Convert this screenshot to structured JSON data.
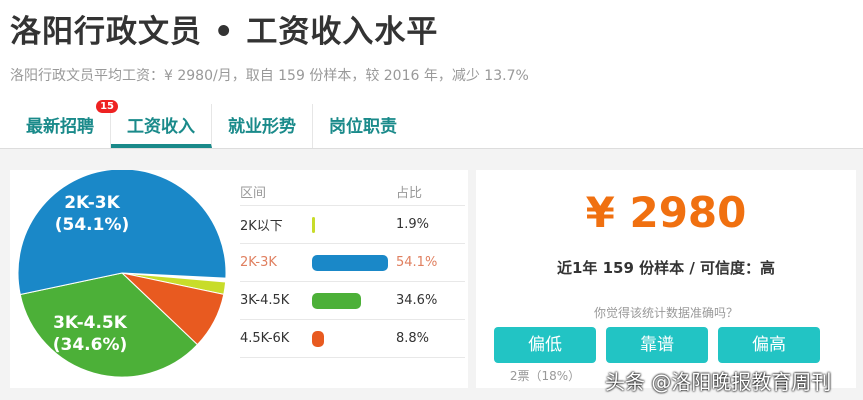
{
  "title": "洛阳行政文员 • 工资收入水平",
  "subtitle": "洛阳行政文员平均工资：¥ 2980/月，取自 159 份样本，较 2016 年，减少 13.7%",
  "tabs": [
    {
      "label": "最新招聘",
      "badge": "15"
    },
    {
      "label": "工资收入",
      "active": true
    },
    {
      "label": "就业形势"
    },
    {
      "label": "岗位职责"
    }
  ],
  "chart_data": {
    "type": "pie",
    "slices": [
      {
        "label": "2K以下",
        "value": 1.9,
        "pct": "1.9%",
        "color": "#c8dc2a"
      },
      {
        "label": "2K-3K",
        "value": 54.1,
        "pct": "54.1%",
        "color": "#1a88c8",
        "pie_label": "2K-3K",
        "pie_pct": "(54.1%)"
      },
      {
        "label": "3K-4.5K",
        "value": 34.6,
        "pct": "34.6%",
        "color": "#4cb038",
        "pie_label": "3K-4.5K",
        "pie_pct": "(34.6%)"
      },
      {
        "label": "4.5K-6K",
        "value": 8.8,
        "pct": "8.8%",
        "color": "#e85a20"
      }
    ],
    "table_headers": [
      "区间",
      "占比"
    ]
  },
  "summary": {
    "price": "¥ 2980",
    "samples": "近1年 159 份样本 / 可信度：高",
    "question": "你觉得该统计数据准确吗？",
    "buttons": [
      "偏低",
      "靠谱",
      "偏高"
    ],
    "votes": "2票（18%）"
  },
  "watermark": "头条 @洛阳晚报教育周刊"
}
